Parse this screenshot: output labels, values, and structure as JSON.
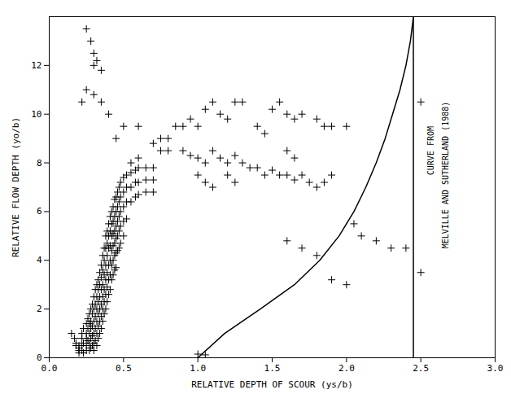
{
  "chart_data": {
    "type": "scatter",
    "xlabel": "RELATIVE DEPTH OF SCOUR (ys/b)",
    "ylabel": "RELATIVE FLOW DEPTH (yo/b)",
    "xlim": [
      0.0,
      3.0
    ],
    "ylim": [
      0,
      14
    ],
    "xticks": [
      {
        "value": 0,
        "label": "0.0"
      },
      0.5,
      {
        "value": 1,
        "label": "1.0"
      },
      1.5,
      {
        "value": 2,
        "label": "2.0"
      },
      2.5,
      {
        "value": 3,
        "label": "3.0"
      }
    ],
    "yticks": [
      0,
      2,
      4,
      6,
      8,
      10,
      12
    ],
    "grid": false,
    "annotations": [
      {
        "text": "CURVE FROM",
        "x": 2.57,
        "y": 8.5
      },
      {
        "text": "MELVILLE AND SUTHERLAND (1988)",
        "x": 2.67,
        "y": 7.5
      }
    ],
    "series": [
      {
        "type": "scatter",
        "marker": "+",
        "color": "black",
        "x": [
          0.15,
          0.17,
          0.18,
          0.18,
          0.2,
          0.2,
          0.2,
          0.2,
          0.22,
          0.22,
          0.22,
          0.22,
          0.23,
          0.23,
          0.23,
          0.25,
          0.25,
          0.25,
          0.25,
          0.25,
          0.26,
          0.26,
          0.26,
          0.27,
          0.27,
          0.27,
          0.27,
          0.27,
          0.28,
          0.28,
          0.28,
          0.28,
          0.28,
          0.29,
          0.29,
          0.29,
          0.29,
          0.29,
          0.3,
          0.3,
          0.3,
          0.3,
          0.3,
          0.3,
          0.31,
          0.31,
          0.31,
          0.31,
          0.31,
          0.32,
          0.32,
          0.32,
          0.32,
          0.32,
          0.32,
          0.33,
          0.33,
          0.33,
          0.33,
          0.33,
          0.33,
          0.34,
          0.34,
          0.34,
          0.34,
          0.34,
          0.34,
          0.35,
          0.35,
          0.35,
          0.35,
          0.35,
          0.35,
          0.36,
          0.36,
          0.36,
          0.36,
          0.36,
          0.36,
          0.37,
          0.37,
          0.37,
          0.37,
          0.37,
          0.37,
          0.38,
          0.38,
          0.38,
          0.38,
          0.38,
          0.38,
          0.39,
          0.39,
          0.39,
          0.39,
          0.39,
          0.39,
          0.4,
          0.4,
          0.4,
          0.4,
          0.4,
          0.4,
          0.41,
          0.41,
          0.41,
          0.41,
          0.41,
          0.41,
          0.42,
          0.42,
          0.42,
          0.42,
          0.42,
          0.42,
          0.43,
          0.43,
          0.43,
          0.43,
          0.43,
          0.43,
          0.44,
          0.44,
          0.44,
          0.44,
          0.44,
          0.44,
          0.45,
          0.45,
          0.45,
          0.45,
          0.45,
          0.45,
          0.46,
          0.46,
          0.46,
          0.46,
          0.46,
          0.47,
          0.47,
          0.47,
          0.47,
          0.47,
          0.48,
          0.48,
          0.48,
          0.48,
          0.48,
          0.5,
          0.5,
          0.5,
          0.5,
          0.5,
          0.52,
          0.52,
          0.52,
          0.52,
          0.55,
          0.55,
          0.55,
          0.58,
          0.58,
          0.58,
          0.6,
          0.6,
          0.6,
          0.65,
          0.65,
          0.65,
          0.7,
          0.7,
          0.7,
          0.25,
          0.28,
          0.3,
          0.32,
          0.3,
          0.35,
          0.25,
          0.3,
          0.35,
          0.22,
          0.4,
          0.5,
          0.45,
          0.6,
          0.75,
          0.8,
          0.9,
          0.95,
          1.0,
          1.05,
          1.1,
          1.15,
          1.2,
          1.25,
          1.3,
          1.35,
          1.4,
          1.45,
          1.5,
          1.55,
          1.6,
          1.65,
          1.7,
          1.75,
          0.7,
          0.75,
          0.8,
          0.85,
          0.9,
          0.95,
          1.0,
          1.05,
          1.1,
          1.15,
          1.2,
          1.25,
          1.3,
          1.5,
          1.55,
          1.6,
          1.65,
          1.7,
          1.9,
          2.0,
          2.05,
          2.1,
          1.9,
          2.0,
          1.6,
          1.7,
          1.8,
          2.2,
          2.3,
          2.4,
          1.0,
          1.05,
          0.55,
          0.6,
          1.8,
          1.85,
          1.9,
          1.8,
          1.85,
          1.6,
          1.65,
          1.4,
          1.45,
          1.2,
          1.25,
          1.0,
          1.05,
          1.1,
          2.5,
          2.5
        ],
        "values": [
          1.0,
          0.8,
          0.6,
          0.5,
          0.5,
          0.4,
          0.3,
          0.2,
          1.0,
          0.8,
          0.5,
          0.3,
          1.2,
          0.6,
          0.2,
          1.4,
          1.0,
          0.8,
          0.5,
          0.3,
          1.6,
          1.2,
          0.7,
          1.8,
          1.4,
          1.0,
          0.6,
          0.3,
          2.0,
          1.5,
          1.2,
          0.8,
          0.4,
          2.2,
          1.8,
          1.3,
          0.9,
          0.5,
          2.5,
          2.0,
          1.5,
          1.0,
          0.6,
          0.3,
          2.8,
          2.2,
          1.7,
          1.2,
          0.7,
          3.0,
          2.5,
          2.0,
          1.5,
          1.0,
          0.5,
          3.2,
          2.8,
          2.3,
          1.8,
          1.3,
          0.8,
          3.5,
          3.0,
          2.5,
          2.0,
          1.5,
          1.0,
          3.8,
          3.3,
          2.8,
          2.2,
          1.7,
          1.2,
          4.2,
          3.6,
          3.0,
          2.5,
          2.0,
          1.5,
          4.5,
          4.0,
          3.4,
          2.8,
          2.3,
          1.8,
          5.0,
          4.5,
          3.8,
          3.2,
          2.6,
          2.0,
          5.2,
          4.7,
          4.2,
          3.5,
          2.9,
          2.3,
          5.5,
          5.0,
          4.5,
          3.8,
          3.2,
          2.6,
          5.8,
          5.2,
          4.6,
          4.0,
          3.4,
          2.8,
          6.0,
          5.5,
          5.0,
          4.4,
          3.8,
          3.2,
          6.2,
          5.6,
          5.1,
          4.6,
          4.0,
          3.4,
          6.5,
          5.8,
          5.2,
          4.7,
          4.2,
          3.6,
          6.6,
          6.0,
          5.4,
          4.9,
          4.3,
          3.7,
          6.8,
          6.2,
          5.6,
          5.0,
          4.4,
          7.0,
          6.4,
          5.8,
          5.2,
          4.5,
          7.2,
          6.6,
          6.0,
          5.4,
          4.7,
          7.4,
          6.8,
          6.2,
          5.6,
          5.0,
          7.5,
          7.0,
          6.4,
          5.7,
          7.6,
          7.0,
          6.4,
          7.7,
          7.2,
          6.6,
          7.8,
          7.2,
          6.7,
          7.8,
          7.3,
          6.8,
          7.8,
          7.3,
          6.8,
          13.5,
          13.0,
          12.5,
          12.2,
          12.0,
          11.8,
          11.0,
          10.8,
          10.5,
          10.5,
          10.0,
          9.5,
          9.0,
          9.5,
          9.0,
          8.5,
          8.5,
          8.3,
          8.2,
          8.0,
          8.5,
          8.2,
          8.0,
          8.3,
          8.0,
          7.8,
          7.8,
          7.5,
          7.7,
          7.5,
          7.5,
          7.3,
          7.5,
          7.2,
          8.8,
          8.5,
          9.0,
          9.5,
          9.5,
          9.8,
          9.5,
          10.2,
          10.5,
          10.0,
          9.8,
          10.5,
          10.5,
          10.2,
          10.5,
          10.0,
          9.8,
          10.0,
          9.5,
          9.5,
          5.5,
          5.0,
          3.2,
          3.0,
          4.8,
          4.5,
          4.2,
          4.8,
          4.5,
          4.5,
          0.15,
          0.12,
          8.0,
          8.2,
          7.0,
          7.2,
          7.5,
          9.8,
          9.5,
          8.5,
          8.2,
          9.5,
          9.2,
          7.5,
          7.2,
          7.5,
          7.2,
          7.0,
          10.5,
          3.5
        ]
      },
      {
        "type": "line",
        "line_style": "solid",
        "color": "black",
        "x": [
          1.0,
          1.18,
          1.42,
          1.65,
          1.82,
          1.95,
          2.05,
          2.13,
          2.2,
          2.26,
          2.31,
          2.36,
          2.4,
          2.43,
          2.45
        ],
        "values": [
          0,
          1,
          2,
          3,
          4,
          5,
          6,
          7,
          8,
          9,
          10,
          11,
          12,
          13,
          14
        ]
      },
      {
        "type": "line",
        "line_style": "solid",
        "color": "black",
        "x": [
          2.45,
          2.45
        ],
        "values": [
          0,
          14
        ]
      }
    ]
  }
}
